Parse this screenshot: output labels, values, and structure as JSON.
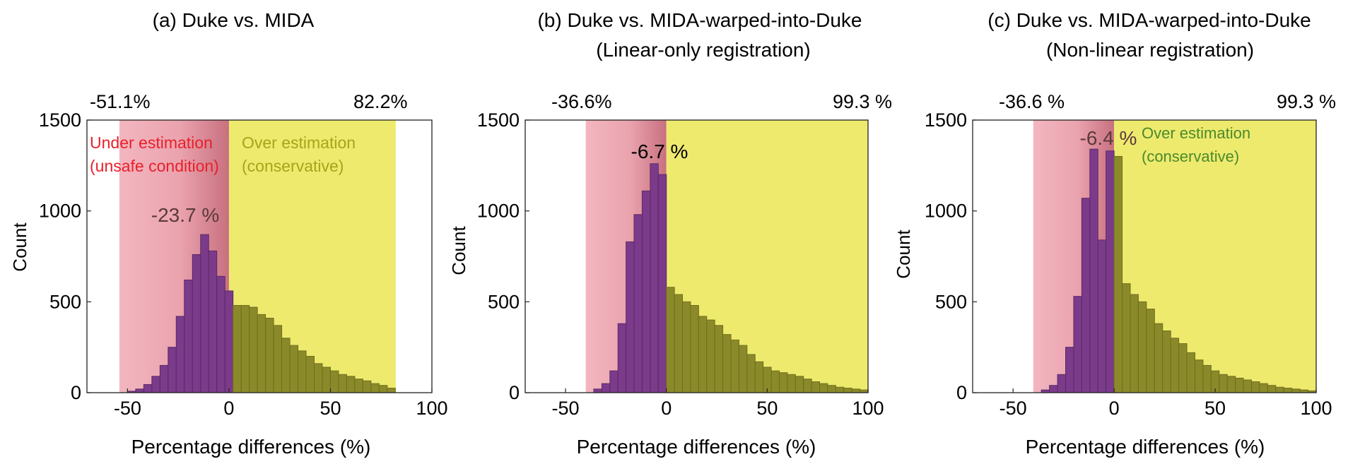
{
  "colors": {
    "purple_bar": "#7b3a8a",
    "olive_bar": "#8b8a2a",
    "bar_edge": "#5a2a66",
    "olive_edge": "#6f6e1c",
    "pink_region": "#f3b6c0",
    "pink_dark": "#c8707f",
    "yellow_region": "#eeea6e",
    "red_label": "#e8202a",
    "olive_label": "#a5a51a",
    "green_label": "#4a8a2a"
  },
  "chart_data": [
    {
      "type": "bar",
      "title": "(a) Duke vs. MIDA",
      "subtitle": "",
      "xlabel": "Percentage differences (%)",
      "ylabel": "Count",
      "xlim": [
        -70,
        100
      ],
      "ylim": [
        0,
        1500
      ],
      "xticks": [
        -50,
        0,
        50,
        100
      ],
      "yticks": [
        0,
        500,
        1000,
        1500
      ],
      "bin_start": -50,
      "bin_width": 4,
      "values": [
        8,
        20,
        45,
        90,
        150,
        250,
        420,
        620,
        760,
        870,
        780,
        640,
        560,
        480,
        480,
        470,
        430,
        410,
        370,
        300,
        260,
        230,
        200,
        160,
        140,
        120,
        100,
        90,
        75,
        65,
        50,
        40,
        25
      ],
      "under_region": [
        -54,
        0
      ],
      "over_region": [
        0,
        82.2
      ],
      "top_left_label": "-51.1%",
      "top_right_label": "82.2%",
      "peak_label": "-23.7 %",
      "under_label": [
        "Under estimation",
        "(unsafe condition)"
      ],
      "over_label": [
        "Over estimation",
        "(conservative)"
      ]
    },
    {
      "type": "bar",
      "title": "(b) Duke vs. MIDA-warped-into-Duke",
      "subtitle": "(Linear-only registration)",
      "xlabel": "Percentage differences (%)",
      "ylabel": "Count",
      "xlim": [
        -70,
        100
      ],
      "ylim": [
        0,
        1500
      ],
      "xticks": [
        -50,
        0,
        50,
        100
      ],
      "yticks": [
        0,
        500,
        1000,
        1500
      ],
      "bin_start": -36,
      "bin_width": 4,
      "values": [
        20,
        50,
        120,
        380,
        830,
        980,
        1110,
        1260,
        1200,
        580,
        540,
        500,
        480,
        420,
        400,
        370,
        320,
        290,
        260,
        210,
        170,
        140,
        120,
        110,
        100,
        90,
        75,
        60,
        50,
        40,
        30,
        25,
        20,
        15
      ],
      "under_region": [
        -40,
        0
      ],
      "over_region": [
        0,
        100
      ],
      "top_left_label": "-36.6%",
      "top_right_label": "99.3 %",
      "peak_label": "-6.7 %",
      "under_label": [],
      "over_label": []
    },
    {
      "type": "bar",
      "title": "(c) Duke vs. MIDA-warped-into-Duke",
      "subtitle": "(Non-linear registration)",
      "xlabel": "Percentage differences (%)",
      "ylabel": "Count",
      "xlim": [
        -70,
        100
      ],
      "ylim": [
        0,
        1500
      ],
      "xticks": [
        -50,
        0,
        50,
        100
      ],
      "yticks": [
        0,
        500,
        1000,
        1500
      ],
      "bin_start": -36,
      "bin_width": 4,
      "values": [
        15,
        40,
        100,
        250,
        530,
        1070,
        1340,
        840,
        1330,
        1300,
        600,
        540,
        500,
        460,
        380,
        340,
        300,
        270,
        220,
        180,
        150,
        120,
        100,
        90,
        80,
        70,
        60,
        50,
        40,
        30,
        25,
        20,
        15,
        10
      ],
      "under_region": [
        -40,
        0
      ],
      "over_region": [
        0,
        100
      ],
      "top_left_label": "-36.6 %",
      "top_right_label": "99.3 %",
      "peak_label": "-6.4 %",
      "under_label": [],
      "over_label": [
        "Over estimation",
        "(conservative)"
      ]
    }
  ]
}
